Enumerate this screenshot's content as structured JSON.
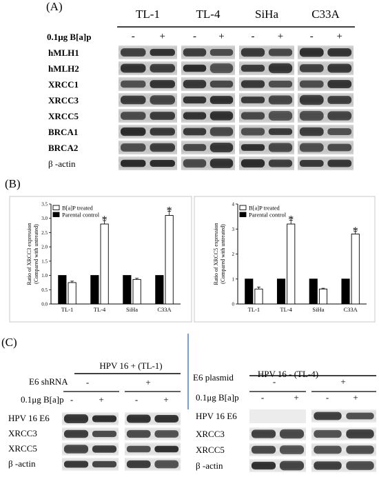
{
  "panelA": {
    "label": "(A)",
    "cell_lines": [
      "TL-1",
      "TL-4",
      "SiHa",
      "C33A"
    ],
    "treatment_label": "0.1μg  B[a]p",
    "signs": [
      "-",
      "+",
      "-",
      "+",
      "-",
      "+",
      "-",
      "+"
    ],
    "rows": [
      "hMLH1",
      "hMLH2",
      "XRCC1",
      "XRCC3",
      "XRCC5",
      "BRCA1",
      "BRCA2",
      "β -actin"
    ]
  },
  "panelB": {
    "label": "(B)",
    "icons": {
      "bracket_marker": "bracket-icon"
    }
  },
  "panelC": {
    "label": "(C)",
    "left": {
      "title": "HPV 16 +  (TL-1)",
      "cond1_label": "E6 shRNA",
      "cond1_signs": [
        "-",
        "+"
      ],
      "cond2_label": "0.1μg  B[a]p",
      "cond2_signs": [
        "-",
        "+",
        "-",
        "+"
      ],
      "rows": [
        "HPV 16 E6",
        "XRCC3",
        "XRCC5",
        "β -actin"
      ]
    },
    "right": {
      "title": "HPV 16 -  (TL-4)",
      "cond1_label": "E6 plasmid",
      "cond1_signs": [
        "-",
        "+"
      ],
      "cond2_label": "0.1μg  B[a]p",
      "cond2_signs": [
        "-",
        "+",
        "-",
        "+"
      ],
      "rows": [
        "HPV 16 E6",
        "XRCC3",
        "XRCC5",
        "β -actin"
      ]
    }
  },
  "chart_data": [
    {
      "type": "bar",
      "ylabel": "Ratio of  XRCC3 expression\n(Compared with untreated)",
      "categories": [
        "TL-1",
        "TL-4",
        "SiHa",
        "C33A"
      ],
      "ylim": [
        0,
        3.5
      ],
      "yticks": [
        "0.0",
        "0.5",
        "1.0",
        "1.5",
        "2.0",
        "2.5",
        "3.0",
        "3.5"
      ],
      "series": [
        {
          "name": "Parental control",
          "values": [
            1.0,
            1.0,
            1.0,
            1.0
          ],
          "color": "#000000"
        },
        {
          "name": "B[a]P treated",
          "values": [
            0.75,
            2.8,
            0.86,
            3.1
          ],
          "errors": [
            0.05,
            0.12,
            0.04,
            0.15
          ],
          "color": "#ffffff"
        }
      ],
      "significance": [
        "",
        "*",
        "",
        "*"
      ],
      "legend": "top-left",
      "grid": false
    },
    {
      "type": "bar",
      "ylabel": "Ratio of  XRCC5 expression\n(Compared with untreated)",
      "categories": [
        "TL-1",
        "TL-4",
        "SiHa",
        "C33A"
      ],
      "ylim": [
        0,
        4
      ],
      "yticks": [
        "0",
        "1",
        "2",
        "3",
        "4"
      ],
      "series": [
        {
          "name": "Parental control",
          "values": [
            1.0,
            1.0,
            1.0,
            1.0
          ],
          "color": "#000000"
        },
        {
          "name": "B[a]P treated",
          "values": [
            0.6,
            3.2,
            0.6,
            2.8
          ],
          "errors": [
            0.08,
            0.15,
            0.03,
            0.1
          ],
          "color": "#ffffff"
        }
      ],
      "significance": [
        "",
        "*",
        "",
        "*"
      ],
      "legend": "top-left",
      "grid": false
    }
  ]
}
